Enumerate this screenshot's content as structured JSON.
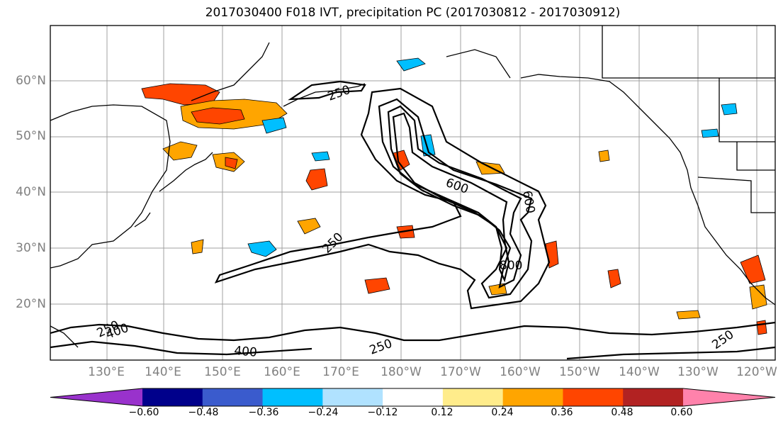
{
  "title": "2017030400 F018 IVT, precipitation PC (2017030812 - 2017030912)",
  "map": {
    "lat_labels": [
      "60°N",
      "50°N",
      "40°N",
      "30°N",
      "20°N"
    ],
    "lon_labels": [
      "130°E",
      "140°E",
      "150°E",
      "160°E",
      "170°E",
      "180°W",
      "170°W",
      "160°W",
      "150°W",
      "140°W",
      "130°W",
      "120°W"
    ],
    "grid": true,
    "contour_color": "#000000",
    "contour_labels": [
      {
        "text": "250",
        "rot": -20
      },
      {
        "text": "250",
        "rot": -45
      },
      {
        "text": "600",
        "rot": 20
      },
      {
        "text": "600",
        "rot": 80
      },
      {
        "text": "800",
        "rot": 0
      },
      {
        "text": "250",
        "rot": -25
      },
      {
        "text": "400",
        "rot": -20
      },
      {
        "text": "400",
        "rot": 5
      },
      {
        "text": "250",
        "rot": -20
      },
      {
        "text": "250",
        "rot": -35
      }
    ]
  },
  "colorbar": {
    "colors": [
      "#9932cc",
      "#00008b",
      "#3a5bcd",
      "#00bfff",
      "#b0e2ff",
      "#ffffff",
      "#ffec8b",
      "#ffa500",
      "#ff4500",
      "#b22222",
      "#ff82ab"
    ],
    "labels": [
      "−0.60",
      "−0.48",
      "−0.36",
      "−0.24",
      "−0.12",
      "0.12",
      "0.24",
      "0.36",
      "0.48",
      "0.60"
    ]
  }
}
